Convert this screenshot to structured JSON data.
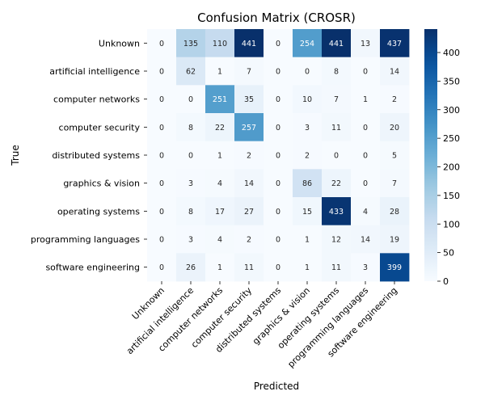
{
  "chart_data": {
    "type": "heatmap",
    "title": "Confusion Matrix (CROSR)",
    "xlabel": "Predicted",
    "ylabel": "True",
    "labels": [
      "Unknown",
      "artificial intelligence",
      "computer networks",
      "computer security",
      "distributed systems",
      "graphics & vision",
      "operating systems",
      "programming languages",
      "software engineering"
    ],
    "matrix": [
      [
        0,
        135,
        110,
        441,
        0,
        254,
        441,
        13,
        437
      ],
      [
        0,
        62,
        1,
        7,
        0,
        0,
        8,
        0,
        14
      ],
      [
        0,
        0,
        251,
        35,
        0,
        10,
        7,
        1,
        2
      ],
      [
        0,
        8,
        22,
        257,
        0,
        3,
        11,
        0,
        20
      ],
      [
        0,
        0,
        1,
        2,
        0,
        2,
        0,
        0,
        5
      ],
      [
        0,
        3,
        4,
        14,
        0,
        86,
        22,
        0,
        7
      ],
      [
        0,
        8,
        17,
        27,
        0,
        15,
        433,
        4,
        28
      ],
      [
        0,
        3,
        4,
        2,
        0,
        1,
        12,
        14,
        19
      ],
      [
        0,
        26,
        1,
        11,
        0,
        1,
        11,
        3,
        399
      ]
    ],
    "colormap": "Blues",
    "vmin": 0,
    "vmax": 441,
    "colorbar_ticks": [
      0,
      50,
      100,
      150,
      200,
      250,
      300,
      350,
      400
    ],
    "grid": false
  }
}
